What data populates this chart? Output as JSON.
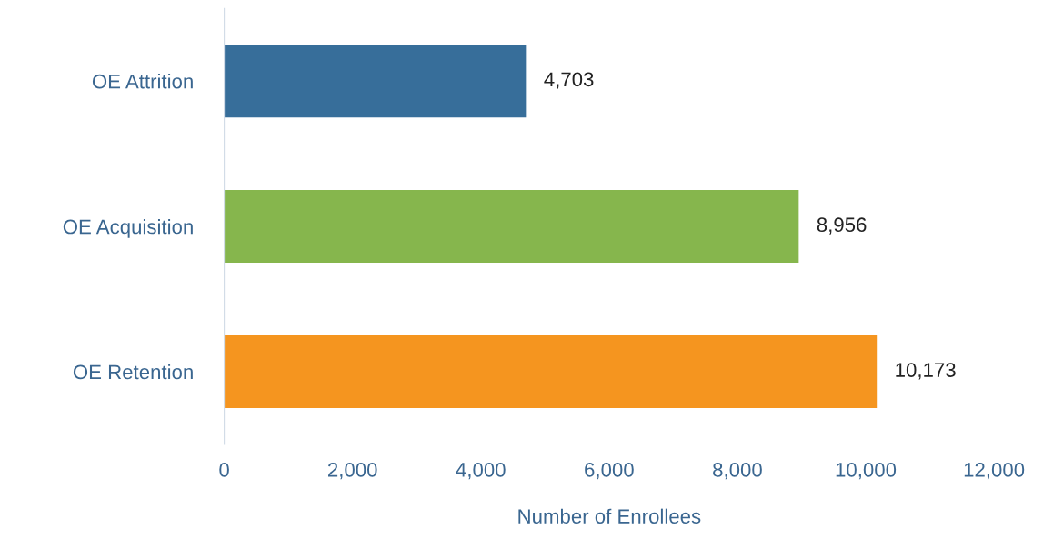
{
  "chart_data": {
    "type": "bar",
    "orientation": "horizontal",
    "categories": [
      "OE Attrition",
      "OE Acquisition",
      "OE Retention"
    ],
    "values": [
      4703,
      8956,
      10173
    ],
    "colors": [
      "#376e9a",
      "#86b64d",
      "#f5951f"
    ],
    "xlabel": "Number of Enrollees",
    "xlim": [
      0,
      12000
    ],
    "xticks": [
      {
        "value": 0,
        "label": "0"
      },
      {
        "value": 2000,
        "label": "2,000"
      },
      {
        "value": 4000,
        "label": "4,000"
      },
      {
        "value": 6000,
        "label": "6,000"
      },
      {
        "value": 8000,
        "label": "8,000"
      },
      {
        "value": 10000,
        "label": "10,000"
      },
      {
        "value": 12000,
        "label": "12,000"
      }
    ],
    "value_labels": [
      "4,703",
      "8,956",
      "10,173"
    ],
    "grid": false,
    "legend": false
  }
}
